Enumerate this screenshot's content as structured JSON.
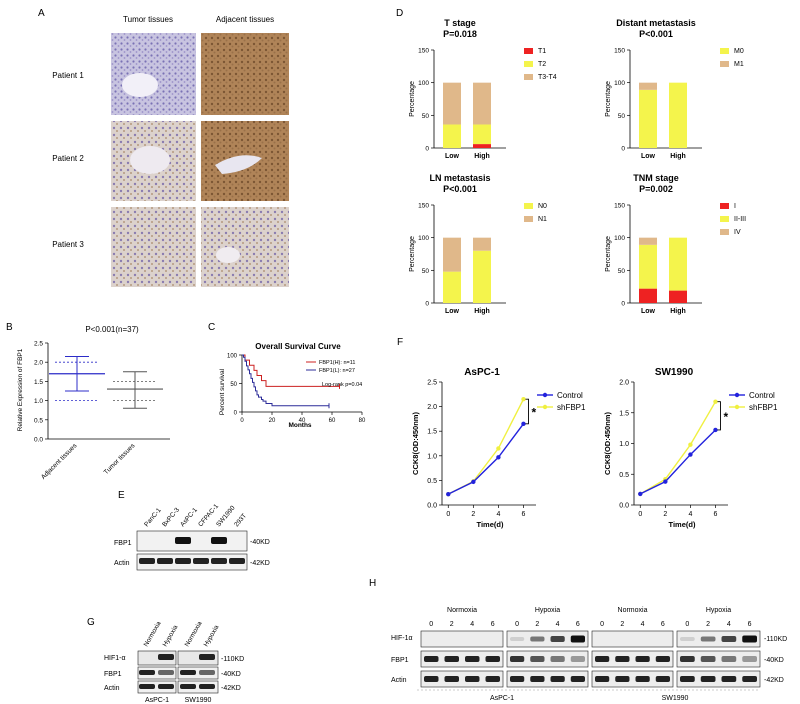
{
  "panels": {
    "A": {
      "letter": "A",
      "col_headers": [
        "Tumor tissues",
        "Adjacent tissues"
      ],
      "patients": [
        "Patient 1",
        "Patient 2",
        "Patient 3"
      ]
    },
    "B": {
      "letter": "B",
      "title": "P<0.001(n=37)",
      "ylabel": "Relative Expression of FBP1",
      "categories": [
        "Adjacent tissues",
        "Tumor tissues"
      ],
      "yticks": [
        "0.0",
        "0.5",
        "1.0",
        "1.5",
        "2.0",
        "2.5"
      ],
      "colors": {
        "adjacent": "#2c2cc8",
        "tumor": "#555555"
      }
    },
    "C": {
      "letter": "C",
      "title": "Overall Survival Curve",
      "ylabel": "Percent survival",
      "xlabel": "Months",
      "legend": [
        "FBP1(H): n=11",
        "FBP1(L): n=27"
      ],
      "annotation": "Log-rank p=0.04",
      "colors": {
        "high": "#cc2020",
        "low": "#2c2c99"
      }
    },
    "D": {
      "letter": "D",
      "ylabel": "Percentage",
      "groups": [
        "Low",
        "High"
      ],
      "yticks": [
        "0",
        "50",
        "100",
        "150"
      ]
    },
    "E": {
      "letter": "E",
      "lanes": [
        "PanC-1",
        "BxPC-3",
        "AsPC-1",
        "CFPAC-1",
        "SW1990",
        "293T"
      ],
      "rows": [
        "FBP1",
        "Actin"
      ],
      "markers": [
        "-40KD",
        "-42KD"
      ]
    },
    "F": {
      "letter": "F",
      "ylabel": "CCK8(OD:450nm)",
      "xlabel": "Time(d)",
      "legend": [
        "Control",
        "shFBP1"
      ],
      "star": "*",
      "colors": {
        "control": "#2222dd",
        "sh": "#f0f040"
      }
    },
    "G": {
      "letter": "G",
      "lanes": [
        "Normoxia",
        "Hypoxia",
        "Normoxia",
        "Hypoxia"
      ],
      "rows": [
        "HIF1-α",
        "FBP1",
        "Actin"
      ],
      "markers": [
        "-110KD",
        "-40KD",
        "-42KD"
      ],
      "cells": [
        "AsPC-1",
        "SW1990"
      ]
    },
    "H": {
      "letter": "H",
      "conditions": [
        "Normoxia",
        "Hypoxia",
        "Normoxia",
        "Hypoxia"
      ],
      "timepoints": [
        "0",
        "2",
        "4",
        "6"
      ],
      "rows": [
        "HIF-1α",
        "FBP1",
        "Actin"
      ],
      "markers": [
        "-110KD",
        "-40KD",
        "-42KD"
      ],
      "cells": [
        "AsPC-1",
        "SW1990"
      ]
    }
  },
  "chart_data": [
    {
      "panel": "D-1",
      "type": "bar",
      "title": "T stage",
      "subtitle": "P=0.018",
      "categories": [
        "Low",
        "High"
      ],
      "ylim": [
        0,
        150
      ],
      "ylabel": "Percentage",
      "legend_position": "right",
      "series": [
        {
          "name": "T1",
          "color": "#ee2222",
          "values": [
            0,
            6
          ]
        },
        {
          "name": "T2",
          "color": "#f4f44c",
          "values": [
            36,
            30
          ]
        },
        {
          "name": "T3-T4",
          "color": "#e0b88a",
          "values": [
            64,
            64
          ]
        }
      ]
    },
    {
      "panel": "D-2",
      "type": "bar",
      "title": "Distant metastasis",
      "subtitle": "P<0.001",
      "categories": [
        "Low",
        "High"
      ],
      "ylim": [
        0,
        150
      ],
      "ylabel": "Percentage",
      "legend_position": "right",
      "series": [
        {
          "name": "M0",
          "color": "#f4f44c",
          "values": [
            89,
            100
          ]
        },
        {
          "name": "M1",
          "color": "#e0b88a",
          "values": [
            11,
            0
          ]
        }
      ]
    },
    {
      "panel": "D-3",
      "type": "bar",
      "title": "LN metastasis",
      "subtitle": "P<0.001",
      "categories": [
        "Low",
        "High"
      ],
      "ylim": [
        0,
        150
      ],
      "ylabel": "Percentage",
      "legend_position": "right",
      "series": [
        {
          "name": "N0",
          "color": "#f4f44c",
          "values": [
            48,
            80
          ]
        },
        {
          "name": "N1",
          "color": "#e0b88a",
          "values": [
            52,
            20
          ]
        }
      ]
    },
    {
      "panel": "D-4",
      "type": "bar",
      "title": "TNM stage",
      "subtitle": "P=0.002",
      "categories": [
        "Low",
        "High"
      ],
      "ylim": [
        0,
        150
      ],
      "ylabel": "Percentage",
      "legend_position": "right",
      "series": [
        {
          "name": "I",
          "color": "#ee2222",
          "values": [
            22,
            19
          ]
        },
        {
          "name": "II-III",
          "color": "#f4f44c",
          "values": [
            67,
            81
          ]
        },
        {
          "name": "IV",
          "color": "#e0b88a",
          "values": [
            11,
            0
          ]
        }
      ]
    },
    {
      "panel": "F-1",
      "type": "line",
      "title": "AsPC-1",
      "x": [
        0,
        2,
        4,
        6
      ],
      "xlim": [
        -0.5,
        7
      ],
      "ylim": [
        0,
        2.5
      ],
      "xlabel": "Time(d)",
      "ylabel": "CCK8(OD:450nm)",
      "yticks": [
        "0.0",
        "0.5",
        "1.0",
        "1.5",
        "2.0",
        "2.5"
      ],
      "xticks": [
        "0",
        "2",
        "4",
        "6"
      ],
      "series": [
        {
          "name": "Control",
          "color": "#2222dd",
          "values": [
            0.22,
            0.47,
            0.97,
            1.65
          ]
        },
        {
          "name": "shFBP1",
          "color": "#f0f040",
          "values": [
            0.22,
            0.48,
            1.15,
            2.15
          ]
        }
      ]
    },
    {
      "panel": "F-2",
      "type": "line",
      "title": "SW1990",
      "x": [
        0,
        2,
        4,
        6
      ],
      "xlim": [
        -0.5,
        7
      ],
      "ylim": [
        0,
        2.0
      ],
      "xlabel": "Time(d)",
      "ylabel": "CCK8(OD:450nm)",
      "yticks": [
        "0.0",
        "0.5",
        "1.0",
        "1.5",
        "2.0"
      ],
      "xticks": [
        "0",
        "2",
        "4",
        "6"
      ],
      "series": [
        {
          "name": "Control",
          "color": "#2222dd",
          "values": [
            0.18,
            0.38,
            0.82,
            1.22
          ]
        },
        {
          "name": "shFBP1",
          "color": "#f0f040",
          "values": [
            0.18,
            0.42,
            0.98,
            1.68
          ]
        }
      ]
    },
    {
      "panel": "B",
      "type": "scatter",
      "title": "P<0.001(n=37)",
      "categories": [
        "Adjacent tissues",
        "Tumor tissues"
      ],
      "ylim": [
        0,
        2.5
      ],
      "ylabel": "Relative Expression of FBP1",
      "series": [
        {
          "name": "Adjacent tissues",
          "mean": 1.7,
          "sd_low": 1.25,
          "sd_high": 2.15,
          "dashed": [
            1.0,
            2.0
          ]
        },
        {
          "name": "Tumor tissues",
          "mean": 1.3,
          "sd_low": 0.8,
          "sd_high": 1.75,
          "dashed": [
            1.0,
            1.5
          ]
        }
      ]
    },
    {
      "panel": "C",
      "type": "line",
      "title": "Overall Survival Curve",
      "xlabel": "Months",
      "ylabel": "Percent survival",
      "xlim": [
        0,
        80
      ],
      "ylim": [
        0,
        100
      ],
      "xticks": [
        "0",
        "20",
        "40",
        "60",
        "80"
      ],
      "yticks": [
        "0",
        "50",
        "100"
      ],
      "annotation": "Log-rank p=0.04",
      "series": [
        {
          "name": "FBP1(H): n=11",
          "color": "#cc2020",
          "x": [
            0,
            2,
            5,
            8,
            10,
            13,
            16,
            65
          ],
          "values": [
            100,
            91,
            82,
            73,
            64,
            55,
            45,
            45
          ]
        },
        {
          "name": "FBP1(L): n=27",
          "color": "#2c2c99",
          "x": [
            0,
            1,
            2,
            3,
            4,
            5,
            6,
            7,
            8,
            9,
            10,
            11,
            13,
            14,
            16,
            20,
            58
          ],
          "values": [
            100,
            96,
            89,
            81,
            74,
            67,
            59,
            52,
            44,
            37,
            30,
            26,
            22,
            19,
            15,
            11,
            11
          ]
        }
      ]
    }
  ]
}
